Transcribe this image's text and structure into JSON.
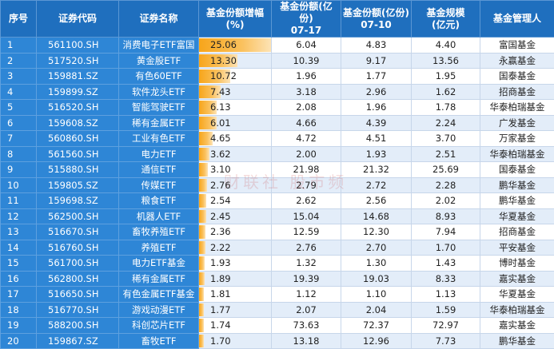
{
  "headers": [
    "序号",
    "证券代码",
    "证券名称",
    "基金份额增幅\n(%)",
    "基金份额(亿份)\n07-17",
    "基金份额(亿份)\n07-10",
    "基金规模\n(亿元)",
    "基金管理人"
  ],
  "watermark": "财联社 股市频",
  "rows": [
    {
      "idx": "1",
      "code": "561100.SH",
      "name": "消费电子ETF富国",
      "inc": "25.06",
      "s717": "6.04",
      "s710": "4.83",
      "aum": "4.40",
      "mgr": "富国基金",
      "bar": 1.0
    },
    {
      "idx": "2",
      "code": "517520.SH",
      "name": "黄金股ETF",
      "inc": "13.30",
      "s717": "10.39",
      "s710": "9.17",
      "aum": "13.56",
      "mgr": "永赢基金",
      "bar": 0.53
    },
    {
      "idx": "3",
      "code": "159881.SZ",
      "name": "有色60ETF",
      "inc": "10.72",
      "s717": "1.96",
      "s710": "1.77",
      "aum": "1.95",
      "mgr": "国泰基金",
      "bar": 0.43
    },
    {
      "idx": "4",
      "code": "159899.SZ",
      "name": "软件龙头ETF",
      "inc": "7.43",
      "s717": "3.18",
      "s710": "2.96",
      "aum": "1.62",
      "mgr": "招商基金",
      "bar": 0.3
    },
    {
      "idx": "5",
      "code": "516520.SH",
      "name": "智能驾驶ETF",
      "inc": "6.13",
      "s717": "2.08",
      "s710": "1.96",
      "aum": "1.78",
      "mgr": "华泰柏瑞基金",
      "bar": 0.245
    },
    {
      "idx": "6",
      "code": "159608.SZ",
      "name": "稀有金属ETF",
      "inc": "6.01",
      "s717": "4.66",
      "s710": "4.39",
      "aum": "2.24",
      "mgr": "广发基金",
      "bar": 0.24
    },
    {
      "idx": "7",
      "code": "560860.SH",
      "name": "工业有色ETF",
      "inc": "4.65",
      "s717": "4.72",
      "s710": "4.51",
      "aum": "3.70",
      "mgr": "万家基金",
      "bar": 0.185
    },
    {
      "idx": "8",
      "code": "561560.SH",
      "name": "电力ETF",
      "inc": "3.62",
      "s717": "2.00",
      "s710": "1.93",
      "aum": "2.51",
      "mgr": "华泰柏瑞基金",
      "bar": 0.145
    },
    {
      "idx": "9",
      "code": "515880.SH",
      "name": "通信ETF",
      "inc": "3.10",
      "s717": "21.98",
      "s710": "21.32",
      "aum": "25.69",
      "mgr": "国泰基金",
      "bar": 0.124
    },
    {
      "idx": "10",
      "code": "159805.SZ",
      "name": "传媒ETF",
      "inc": "2.76",
      "s717": "2.79",
      "s710": "2.72",
      "aum": "2.28",
      "mgr": "鹏华基金",
      "bar": 0.11
    },
    {
      "idx": "11",
      "code": "159698.SZ",
      "name": "粮食ETF",
      "inc": "2.54",
      "s717": "2.62",
      "s710": "2.56",
      "aum": "2.02",
      "mgr": "鹏华基金",
      "bar": 0.1
    },
    {
      "idx": "12",
      "code": "562500.SH",
      "name": "机器人ETF",
      "inc": "2.45",
      "s717": "15.04",
      "s710": "14.68",
      "aum": "8.93",
      "mgr": "华夏基金",
      "bar": 0.098
    },
    {
      "idx": "13",
      "code": "516670.SH",
      "name": "畜牧养殖ETF",
      "inc": "2.36",
      "s717": "12.59",
      "s710": "12.30",
      "aum": "7.94",
      "mgr": "招商基金",
      "bar": 0.094
    },
    {
      "idx": "14",
      "code": "516760.SH",
      "name": "养殖ETF",
      "inc": "2.22",
      "s717": "2.76",
      "s710": "2.70",
      "aum": "1.70",
      "mgr": "平安基金",
      "bar": 0.089
    },
    {
      "idx": "15",
      "code": "561700.SH",
      "name": "电力ETF基金",
      "inc": "1.93",
      "s717": "1.32",
      "s710": "1.30",
      "aum": "1.43",
      "mgr": "博时基金",
      "bar": 0.077
    },
    {
      "idx": "16",
      "code": "562800.SH",
      "name": "稀有金属ETF",
      "inc": "1.89",
      "s717": "19.39",
      "s710": "19.03",
      "aum": "8.33",
      "mgr": "嘉实基金",
      "bar": 0.075
    },
    {
      "idx": "17",
      "code": "516650.SH",
      "name": "有色金属ETF基金",
      "inc": "1.81",
      "s717": "1.12",
      "s710": "1.10",
      "aum": "1.13",
      "mgr": "华夏基金",
      "bar": 0.072
    },
    {
      "idx": "18",
      "code": "516770.SH",
      "name": "游戏动漫ETF",
      "inc": "1.77",
      "s717": "2.07",
      "s710": "2.04",
      "aum": "1.59",
      "mgr": "华泰柏瑞基金",
      "bar": 0.071
    },
    {
      "idx": "19",
      "code": "588200.SH",
      "name": "科创芯片ETF",
      "inc": "1.74",
      "s717": "73.63",
      "s710": "72.37",
      "aum": "72.97",
      "mgr": "嘉实基金",
      "bar": 0.069
    },
    {
      "idx": "20",
      "code": "159867.SZ",
      "name": "畜牧ETF",
      "inc": "1.70",
      "s717": "13.18",
      "s710": "12.96",
      "aum": "7.73",
      "mgr": "鹏华基金",
      "bar": 0.068
    }
  ]
}
